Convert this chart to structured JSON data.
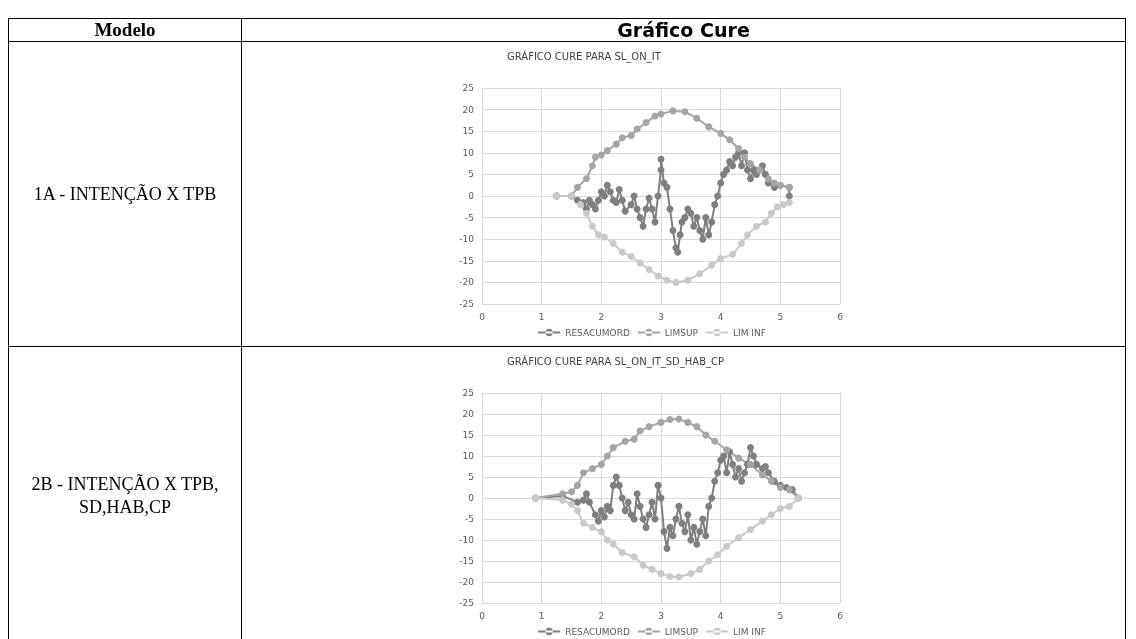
{
  "chart_data": [
    {
      "type": "line",
      "title": "GRÁFICO CURE PARA SL_ON_IT",
      "annotations": [
        "Modelo",
        "Gráfico Cure",
        "1A - INTENÇÃO X TPB"
      ],
      "xlim": [
        0,
        6
      ],
      "xticks": [
        0,
        1,
        2,
        3,
        4,
        5,
        6
      ],
      "ylim": [
        -25,
        25
      ],
      "yticks": [
        -25,
        -20,
        -15,
        -10,
        -5,
        0,
        5,
        10,
        15,
        20,
        25
      ],
      "grid": true,
      "legend": "bottom",
      "marker": "circle",
      "line_style": "solid",
      "series": [
        {
          "name": "RESACUMORD",
          "color": "#7f7f7f",
          "x": [
            1.25,
            1.5,
            1.6,
            1.7,
            1.75,
            1.8,
            1.85,
            1.9,
            1.95,
            2.0,
            2.05,
            2.1,
            2.15,
            2.2,
            2.25,
            2.3,
            2.35,
            2.4,
            2.5,
            2.55,
            2.6,
            2.65,
            2.7,
            2.75,
            2.8,
            2.85,
            2.9,
            2.95,
            3.0,
            3.0,
            3.05,
            3.1,
            3.15,
            3.2,
            3.25,
            3.28,
            3.32,
            3.35,
            3.4,
            3.45,
            3.5,
            3.55,
            3.6,
            3.65,
            3.7,
            3.75,
            3.8,
            3.85,
            3.9,
            3.95,
            4.0,
            4.05,
            4.1,
            4.15,
            4.2,
            4.25,
            4.3,
            4.35,
            4.4,
            4.45,
            4.5,
            4.55,
            4.6,
            4.7,
            4.75,
            4.8,
            4.9,
            5.0,
            5.15,
            5.15
          ],
          "values": [
            0,
            0,
            -1,
            -1.5,
            -3,
            -1,
            -2,
            -3,
            -1,
            1,
            0,
            2.5,
            1,
            -1,
            -1.5,
            1.5,
            -1,
            -3.5,
            -2,
            0,
            -3,
            -5,
            -7,
            -3,
            -0.5,
            -3,
            -6,
            0,
            6,
            8.5,
            3,
            2,
            -3,
            -8,
            -12,
            -13,
            -9,
            -6,
            -5,
            -3,
            -4,
            -7,
            -5,
            -8,
            -10,
            -5,
            -9,
            -6,
            -2,
            0,
            3,
            5,
            6,
            8,
            7,
            9,
            10,
            7,
            10,
            6,
            4,
            6,
            5,
            7,
            5,
            3,
            2,
            2.5,
            2,
            0
          ]
        },
        {
          "name": "LIMSUP",
          "color": "#a5a5a5",
          "x": [
            1.25,
            1.5,
            1.6,
            1.75,
            1.85,
            1.9,
            2.0,
            2.1,
            2.25,
            2.35,
            2.5,
            2.6,
            2.75,
            2.9,
            3.0,
            3.2,
            3.4,
            3.6,
            3.8,
            4.0,
            4.15,
            4.3,
            4.4,
            4.5,
            4.65,
            4.8,
            4.9,
            5.0,
            5.15
          ],
          "values": [
            0,
            0,
            2,
            4,
            7,
            9,
            9.5,
            10.5,
            12,
            13.5,
            14,
            15.5,
            17,
            18.5,
            19,
            19.7,
            19.5,
            18,
            16,
            14.5,
            13,
            11,
            9,
            7.5,
            6,
            4,
            3,
            2.5,
            2
          ]
        },
        {
          "name": "LIM INF",
          "color": "#c9c9c9",
          "x": [
            1.25,
            1.5,
            1.65,
            1.75,
            1.85,
            1.95,
            2.05,
            2.2,
            2.35,
            2.5,
            2.65,
            2.8,
            2.95,
            3.1,
            3.25,
            3.45,
            3.65,
            3.85,
            4.0,
            4.2,
            4.35,
            4.45,
            4.6,
            4.75,
            4.85,
            4.95,
            5.05,
            5.15
          ],
          "values": [
            0,
            0,
            -2,
            -4,
            -7,
            -9,
            -9.5,
            -11,
            -13,
            -14,
            -15.5,
            -17,
            -18.5,
            -19.5,
            -20,
            -19.5,
            -18,
            -16,
            -14.5,
            -13.5,
            -11,
            -9,
            -7,
            -6,
            -4,
            -2.5,
            -2,
            -1.5
          ]
        }
      ]
    },
    {
      "type": "line",
      "title": "GRÁFICO CURE PARA SL_ON_IT_SD_HAB_CP",
      "annotations": [
        "2B - INTENÇÃO X TPB, SD,HAB,CP"
      ],
      "xlim": [
        0,
        6
      ],
      "xticks": [
        0,
        1,
        2,
        3,
        4,
        5,
        6
      ],
      "ylim": [
        -25,
        25
      ],
      "yticks": [
        -25,
        -20,
        -15,
        -10,
        -5,
        0,
        5,
        10,
        15,
        20,
        25
      ],
      "grid": true,
      "legend": "bottom",
      "marker": "circle",
      "line_style": "solid",
      "series": [
        {
          "name": "RESACUMORD",
          "color": "#7f7f7f",
          "x": [
            0.9,
            1.35,
            1.6,
            1.7,
            1.75,
            1.8,
            1.9,
            1.95,
            2.0,
            2.05,
            2.1,
            2.15,
            2.2,
            2.25,
            2.3,
            2.35,
            2.4,
            2.45,
            2.5,
            2.55,
            2.6,
            2.65,
            2.7,
            2.75,
            2.8,
            2.85,
            2.9,
            2.95,
            3.0,
            3.05,
            3.1,
            3.15,
            3.2,
            3.25,
            3.3,
            3.35,
            3.4,
            3.45,
            3.5,
            3.55,
            3.6,
            3.65,
            3.7,
            3.75,
            3.8,
            3.85,
            3.9,
            3.95,
            4.0,
            4.05,
            4.1,
            4.15,
            4.2,
            4.25,
            4.3,
            4.35,
            4.4,
            4.45,
            4.5,
            4.55,
            4.6,
            4.7,
            4.75,
            4.8,
            4.9,
            5.0,
            5.1,
            5.2,
            5.3
          ],
          "values": [
            0,
            0.5,
            -1,
            -0.5,
            1,
            -1,
            -4,
            -5.5,
            -3,
            -4.5,
            -2,
            -3,
            3,
            5,
            3,
            0,
            -3,
            -1,
            -4,
            -5,
            1,
            -2,
            -5,
            -7,
            -4,
            -1,
            -5,
            3,
            0,
            -8,
            -12,
            -7,
            -9,
            -5,
            -2,
            -6,
            -8,
            -4,
            -10,
            -7,
            -11,
            -8,
            -5,
            -9,
            -2,
            0,
            4,
            6,
            9,
            10,
            6,
            11,
            8,
            5,
            7,
            4,
            6,
            8,
            12,
            10,
            8,
            7,
            7.5,
            6,
            4,
            3,
            2.5,
            2,
            0
          ]
        },
        {
          "name": "LIMSUP",
          "color": "#a5a5a5",
          "x": [
            0.9,
            1.35,
            1.5,
            1.6,
            1.7,
            1.85,
            2.0,
            2.1,
            2.2,
            2.4,
            2.55,
            2.65,
            2.8,
            3.0,
            3.15,
            3.3,
            3.45,
            3.6,
            3.75,
            3.9,
            4.1,
            4.3,
            4.5,
            4.7,
            4.85,
            5.0,
            5.15,
            5.3
          ],
          "values": [
            0,
            1,
            1.5,
            3,
            6,
            7,
            8,
            10,
            12,
            13.5,
            14,
            16,
            17,
            18,
            18.7,
            18.8,
            18,
            17,
            15,
            13.5,
            11.5,
            9.5,
            8,
            5.5,
            4,
            2.5,
            2,
            0
          ]
        },
        {
          "name": "LIM INF",
          "color": "#c9c9c9",
          "x": [
            0.9,
            1.35,
            1.5,
            1.6,
            1.7,
            1.85,
            2.0,
            2.1,
            2.2,
            2.35,
            2.55,
            2.7,
            2.85,
            3.0,
            3.15,
            3.3,
            3.5,
            3.65,
            3.8,
            3.95,
            4.1,
            4.3,
            4.5,
            4.7,
            4.85,
            5.0,
            5.15,
            5.3
          ],
          "values": [
            0,
            -0.5,
            -1.5,
            -3,
            -6,
            -7,
            -8,
            -10,
            -11,
            -13,
            -14,
            -16,
            -17,
            -18,
            -18.7,
            -18.8,
            -18,
            -17,
            -15,
            -13.5,
            -11.5,
            -9.5,
            -7.5,
            -5.5,
            -4,
            -2.5,
            -2,
            0
          ]
        }
      ]
    }
  ]
}
